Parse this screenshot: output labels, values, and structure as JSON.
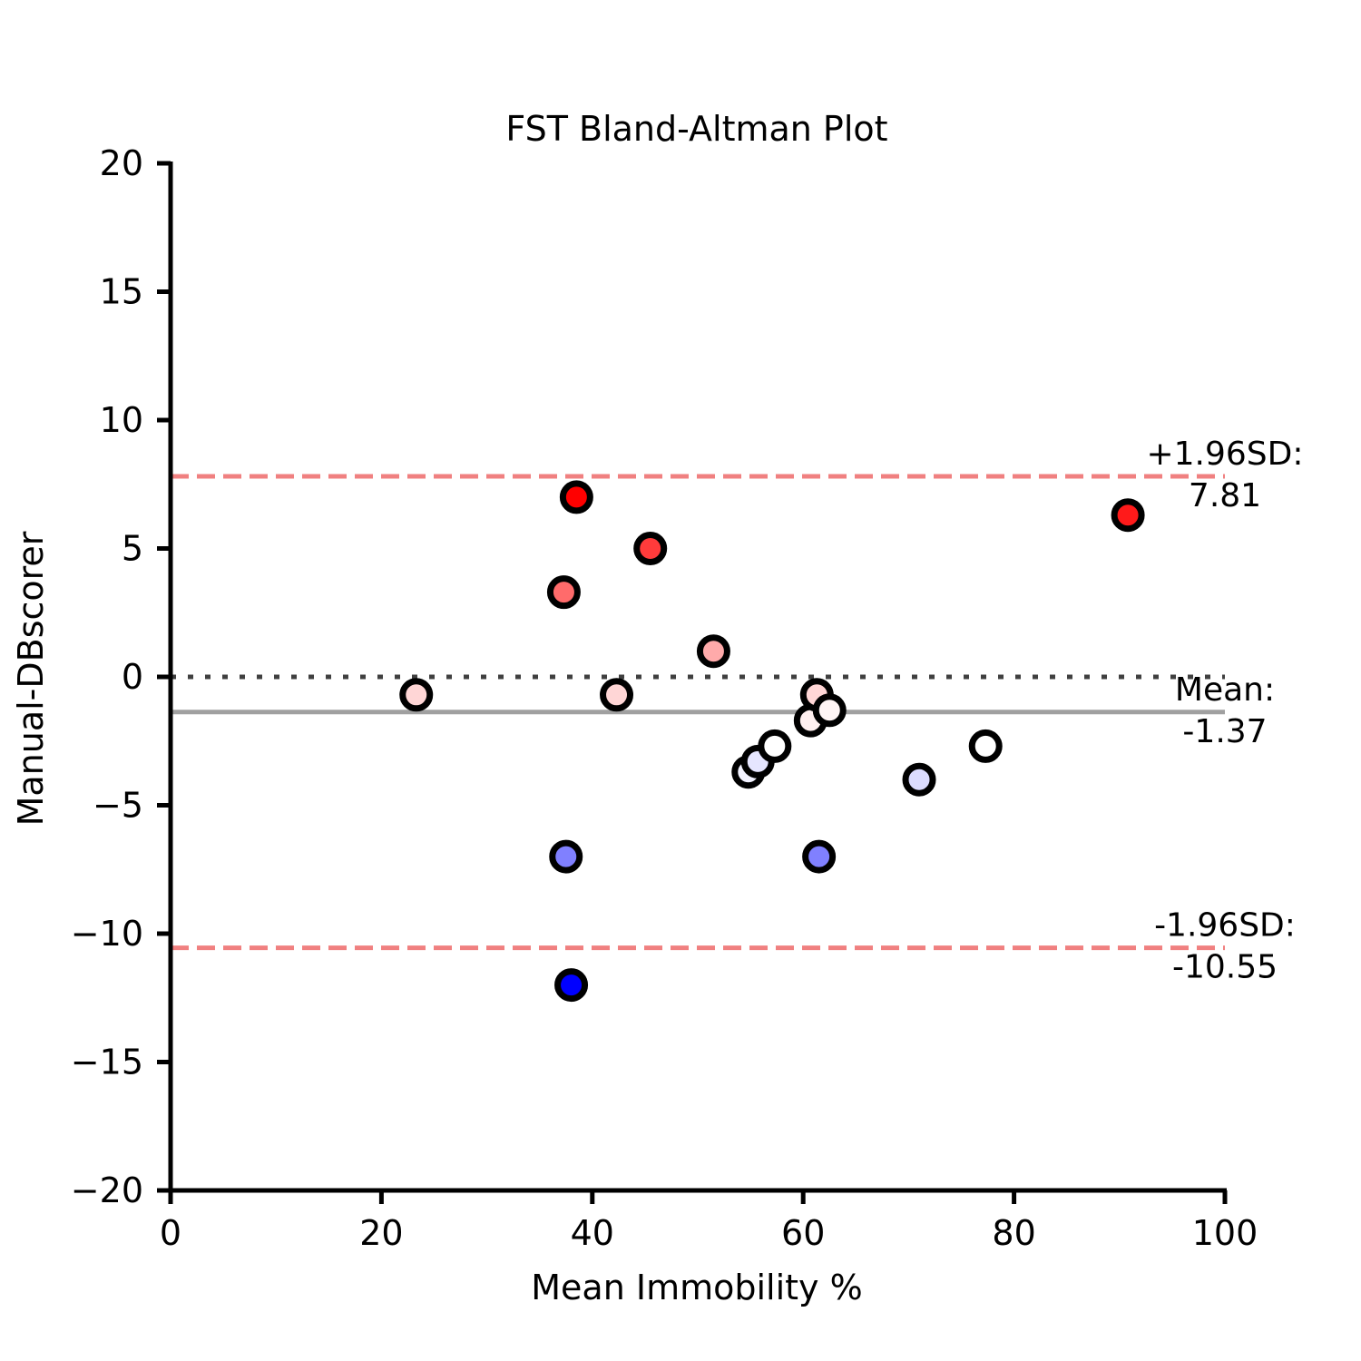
{
  "chart_data": {
    "type": "scatter",
    "title": "FST Bland-Altman Plot",
    "xlabel": "Mean Immobility %",
    "ylabel": "Manual-DBscorer",
    "xlim": [
      0,
      100
    ],
    "ylim": [
      -20,
      20
    ],
    "xticks": [
      0,
      20,
      40,
      60,
      80,
      100
    ],
    "yticks": [
      20,
      15,
      10,
      5,
      0,
      -5,
      -10,
      -15,
      -20
    ],
    "xtick_labels": [
      "0",
      "20",
      "40",
      "60",
      "80",
      "100"
    ],
    "ytick_labels": [
      "20",
      "15",
      "10",
      "5",
      "0",
      "−5",
      "−10",
      "−15",
      "−20"
    ],
    "grid": false,
    "points": [
      {
        "x": 23.3,
        "y": -0.7,
        "color": "#ffd6d6"
      },
      {
        "x": 37.3,
        "y": 3.3,
        "color": "#ff6b6b"
      },
      {
        "x": 37.5,
        "y": -7.0,
        "color": "#8080ff"
      },
      {
        "x": 38.0,
        "y": -12.0,
        "color": "#0000ff"
      },
      {
        "x": 38.5,
        "y": 7.0,
        "color": "#ff0000"
      },
      {
        "x": 42.3,
        "y": -0.7,
        "color": "#ffd6d6"
      },
      {
        "x": 45.5,
        "y": 5.0,
        "color": "#ff3b3b"
      },
      {
        "x": 51.5,
        "y": 1.0,
        "color": "#ffaaaa"
      },
      {
        "x": 54.8,
        "y": -3.7,
        "color": "#f2f2ff"
      },
      {
        "x": 55.7,
        "y": -3.3,
        "color": "#e6e6ff"
      },
      {
        "x": 57.3,
        "y": -2.7,
        "color": "#ffffff"
      },
      {
        "x": 60.7,
        "y": -1.7,
        "color": "#fff0f0"
      },
      {
        "x": 61.3,
        "y": -0.7,
        "color": "#ffd6d6"
      },
      {
        "x": 62.5,
        "y": -1.3,
        "color": "#fff5f5"
      },
      {
        "x": 61.5,
        "y": -7.0,
        "color": "#8080ff"
      },
      {
        "x": 71.0,
        "y": -4.0,
        "color": "#dcdcff"
      },
      {
        "x": 77.3,
        "y": -2.7,
        "color": "#ffffff"
      },
      {
        "x": 90.8,
        "y": 6.3,
        "color": "#ff1a1a"
      }
    ],
    "reference_lines": [
      {
        "name": "upper",
        "y": 7.81,
        "style": "dashed",
        "color": "#f08080",
        "label_line1": "+1.96SD:",
        "label_line2": "7.81"
      },
      {
        "name": "mean",
        "y": -1.37,
        "style": "solid",
        "color": "#a0a0a0",
        "label_line1": "Mean:",
        "label_line2": "-1.37"
      },
      {
        "name": "zero",
        "y": 0,
        "style": "dotted",
        "color": "#404040"
      },
      {
        "name": "lower",
        "y": -10.55,
        "style": "dashed",
        "color": "#f08080",
        "label_line1": "-1.96SD:",
        "label_line2": "-10.55"
      }
    ]
  }
}
